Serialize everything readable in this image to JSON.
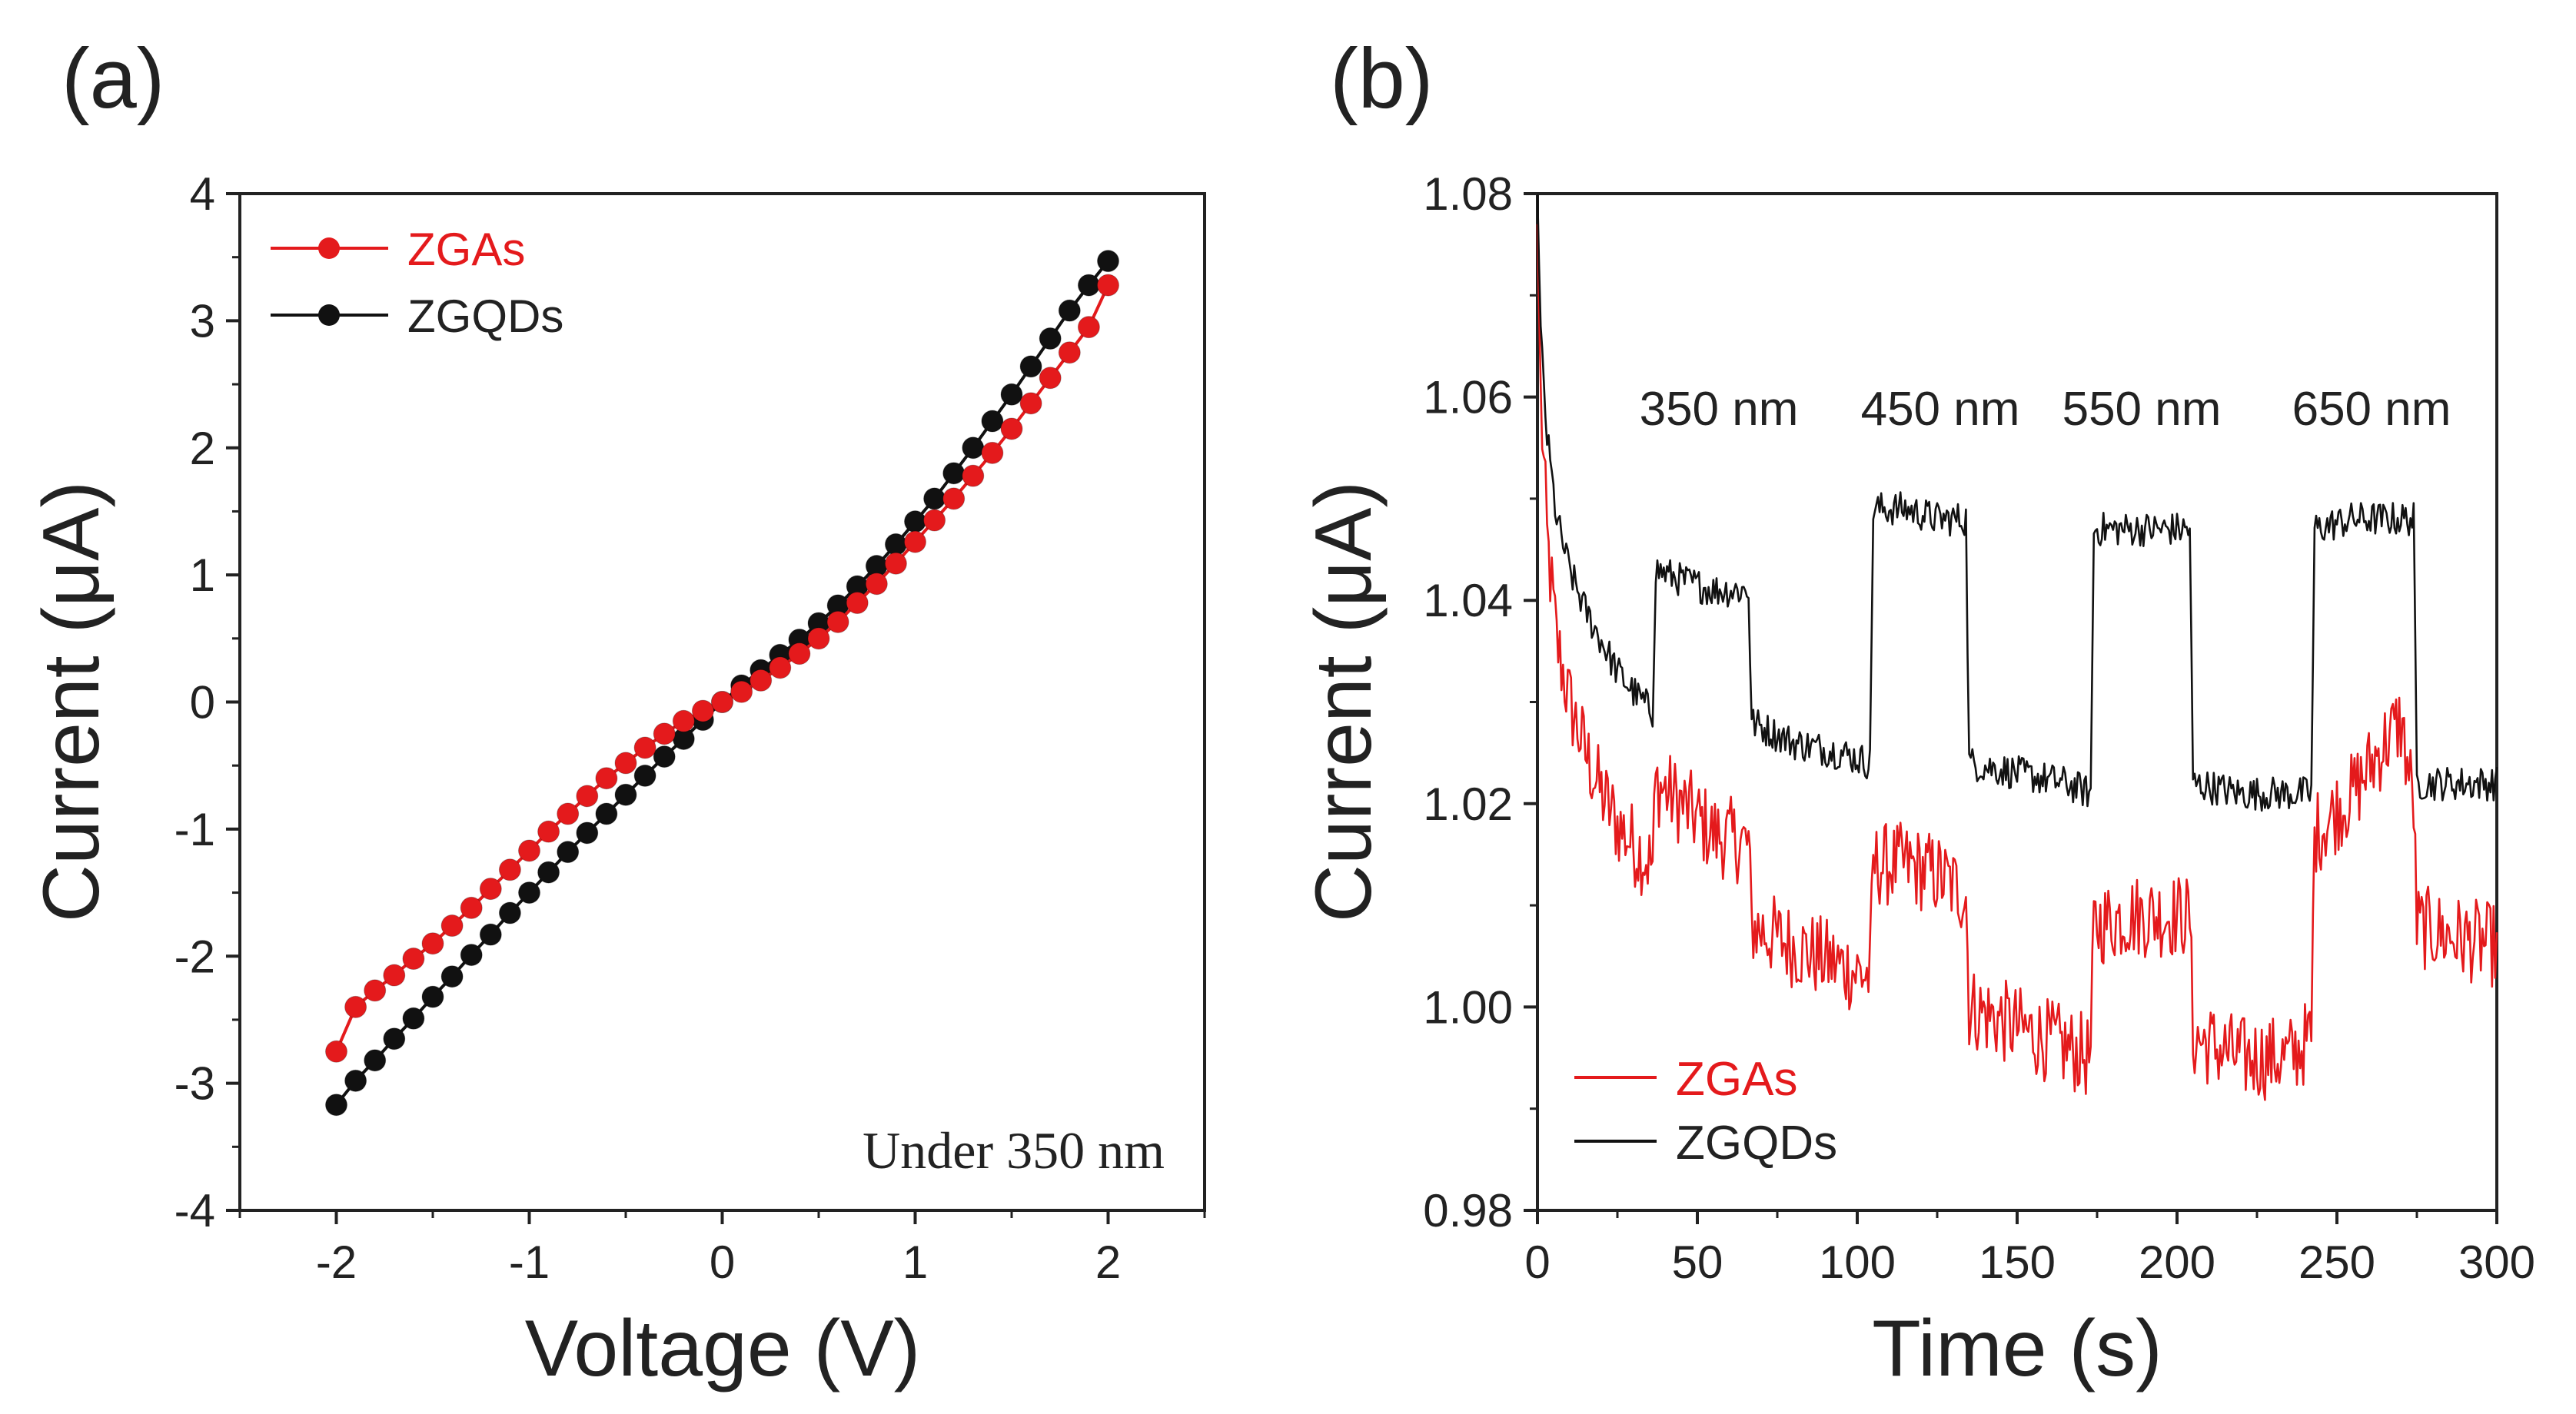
{
  "chart_data": [
    {
      "panel_label": "(a)",
      "type": "line",
      "xlabel": "Voltage (V)",
      "ylabel": "Current (μA)",
      "xlim": [
        -2.5,
        2.5
      ],
      "ylim": [
        -4,
        4
      ],
      "xticks": [
        -2,
        -1,
        0,
        1,
        2
      ],
      "yticks": [
        -4,
        -3,
        -2,
        -1,
        0,
        1,
        2,
        3,
        4
      ],
      "xtick_labels": [
        "-2",
        "-1",
        "0",
        "1",
        "2"
      ],
      "ytick_labels": [
        "-4",
        "-3",
        "-2",
        "-1",
        "0",
        "1",
        "2",
        "3",
        "4"
      ],
      "legend_position": "top-left",
      "annotation": "Under 350 nm",
      "series": [
        {
          "name": "ZGAs",
          "color": "#e41a1c",
          "markers": true,
          "x": [
            -2.0,
            -1.9,
            -1.8,
            -1.7,
            -1.6,
            -1.5,
            -1.4,
            -1.3,
            -1.2,
            -1.1,
            -1.0,
            -0.9,
            -0.8,
            -0.7,
            -0.6,
            -0.5,
            -0.4,
            -0.3,
            -0.2,
            -0.1,
            0.0,
            0.1,
            0.2,
            0.3,
            0.4,
            0.5,
            0.6,
            0.7,
            0.8,
            0.9,
            1.0,
            1.1,
            1.2,
            1.3,
            1.4,
            1.5,
            1.6,
            1.7,
            1.8,
            1.9,
            2.0
          ],
          "y": [
            -2.75,
            -2.4,
            -2.27,
            -2.15,
            -2.02,
            -1.9,
            -1.76,
            -1.62,
            -1.47,
            -1.32,
            -1.17,
            -1.02,
            -0.88,
            -0.74,
            -0.6,
            -0.48,
            -0.36,
            -0.25,
            -0.15,
            -0.07,
            0.0,
            0.08,
            0.17,
            0.27,
            0.38,
            0.5,
            0.63,
            0.78,
            0.93,
            1.09,
            1.26,
            1.43,
            1.6,
            1.78,
            1.96,
            2.15,
            2.35,
            2.55,
            2.75,
            2.95,
            3.28
          ]
        },
        {
          "name": "ZGQDs",
          "color": "#111111",
          "markers": true,
          "x": [
            -2.0,
            -1.9,
            -1.8,
            -1.7,
            -1.6,
            -1.5,
            -1.4,
            -1.3,
            -1.2,
            -1.1,
            -1.0,
            -0.9,
            -0.8,
            -0.7,
            -0.6,
            -0.5,
            -0.4,
            -0.3,
            -0.2,
            -0.1,
            0.0,
            0.1,
            0.2,
            0.3,
            0.4,
            0.5,
            0.6,
            0.7,
            0.8,
            0.9,
            1.0,
            1.1,
            1.2,
            1.3,
            1.4,
            1.5,
            1.6,
            1.7,
            1.8,
            1.9,
            2.0
          ],
          "y": [
            -3.17,
            -2.98,
            -2.82,
            -2.65,
            -2.49,
            -2.32,
            -2.16,
            -1.99,
            -1.83,
            -1.66,
            -1.5,
            -1.34,
            -1.18,
            -1.03,
            -0.88,
            -0.73,
            -0.58,
            -0.43,
            -0.29,
            -0.14,
            0.0,
            0.13,
            0.25,
            0.37,
            0.49,
            0.62,
            0.76,
            0.91,
            1.07,
            1.24,
            1.42,
            1.6,
            1.8,
            2.0,
            2.21,
            2.42,
            2.64,
            2.86,
            3.08,
            3.28,
            3.47
          ]
        }
      ]
    },
    {
      "panel_label": "(b)",
      "type": "line",
      "xlabel": "Time (s)",
      "ylabel": "Current (μA)",
      "xlim": [
        0,
        300
      ],
      "ylim": [
        0.98,
        1.08
      ],
      "xticks": [
        0,
        50,
        100,
        150,
        200,
        250,
        300
      ],
      "yticks": [
        0.98,
        1.0,
        1.02,
        1.04,
        1.06,
        1.08
      ],
      "xtick_labels": [
        "0",
        "50",
        "100",
        "150",
        "200",
        "250",
        "300"
      ],
      "ytick_labels": [
        "0.98",
        "1.00",
        "1.02",
        "1.04",
        "1.06",
        "1.08"
      ],
      "legend_position": "bottom-left",
      "annotations": [
        {
          "text": "350 nm",
          "x": 56,
          "y": 1.062
        },
        {
          "text": "450 nm",
          "x": 125,
          "y": 1.062
        },
        {
          "text": "550 nm",
          "x": 188,
          "y": 1.061
        },
        {
          "text": "650 nm",
          "x": 260,
          "y": 1.062
        }
      ],
      "series": [
        {
          "name": "ZGAs",
          "color": "#e41a1c",
          "x": [
            0,
            1,
            3,
            6,
            10,
            15,
            20,
            25,
            30,
            36,
            37,
            45,
            55,
            66,
            67,
            80,
            95,
            104,
            105,
            115,
            125,
            134,
            135,
            150,
            165,
            173,
            174,
            185,
            195,
            204,
            205,
            220,
            235,
            242,
            243,
            255,
            265,
            270,
            274,
            275,
            285,
            300
          ],
          "y": [
            1.077,
            1.06,
            1.046,
            1.036,
            1.03,
            1.025,
            1.021,
            1.018,
            1.016,
            1.014,
            1.022,
            1.02,
            1.017,
            1.016,
            1.008,
            1.006,
            1.004,
            1.003,
            1.014,
            1.014,
            1.013,
            1.011,
            1.0,
            0.998,
            0.996,
            0.995,
            1.008,
            1.009,
            1.009,
            1.009,
            0.997,
            0.995,
            0.995,
            0.997,
            1.017,
            1.021,
            1.026,
            1.028,
            1.02,
            1.008,
            1.007,
            1.006
          ]
        },
        {
          "name": "ZGQDs",
          "color": "#111111",
          "x": [
            0,
            1,
            3,
            6,
            10,
            15,
            20,
            25,
            30,
            36,
            37,
            45,
            55,
            66,
            67,
            80,
            95,
            104,
            105,
            115,
            125,
            134,
            135,
            150,
            165,
            173,
            174,
            185,
            195,
            204,
            205,
            220,
            235,
            242,
            243,
            255,
            265,
            274,
            275,
            285,
            300
          ],
          "y": [
            1.08,
            1.066,
            1.056,
            1.048,
            1.043,
            1.039,
            1.036,
            1.033,
            1.031,
            1.029,
            1.043,
            1.042,
            1.041,
            1.041,
            1.028,
            1.026,
            1.025,
            1.024,
            1.049,
            1.049,
            1.048,
            1.048,
            1.024,
            1.023,
            1.022,
            1.021,
            1.047,
            1.047,
            1.047,
            1.047,
            1.022,
            1.021,
            1.021,
            1.021,
            1.047,
            1.048,
            1.048,
            1.048,
            1.022,
            1.022,
            1.022
          ]
        }
      ]
    }
  ]
}
